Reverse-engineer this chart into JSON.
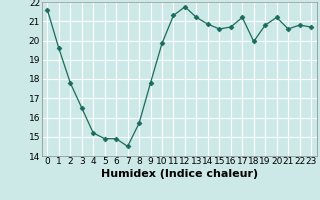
{
  "x": [
    0,
    1,
    2,
    3,
    4,
    5,
    6,
    7,
    8,
    9,
    10,
    11,
    12,
    13,
    14,
    15,
    16,
    17,
    18,
    19,
    20,
    21,
    22,
    23
  ],
  "y": [
    21.6,
    19.6,
    17.8,
    16.5,
    15.2,
    14.9,
    14.9,
    14.5,
    15.7,
    17.8,
    19.85,
    21.3,
    21.75,
    21.2,
    20.85,
    20.6,
    20.7,
    21.2,
    19.95,
    20.8,
    21.2,
    20.6,
    20.8,
    20.7
  ],
  "line_color": "#1a6b5a",
  "marker": "D",
  "marker_size": 2.5,
  "bg_color": "#cce9e8",
  "grid_color": "#ffffff",
  "xlabel": "Humidex (Indice chaleur)",
  "xlabel_fontsize": 8,
  "tick_fontsize": 6.5,
  "ylim": [
    14,
    22
  ],
  "xlim": [
    -0.5,
    23.5
  ],
  "yticks": [
    14,
    15,
    16,
    17,
    18,
    19,
    20,
    21,
    22
  ],
  "xticks": [
    0,
    1,
    2,
    3,
    4,
    5,
    6,
    7,
    8,
    9,
    10,
    11,
    12,
    13,
    14,
    15,
    16,
    17,
    18,
    19,
    20,
    21,
    22,
    23
  ]
}
